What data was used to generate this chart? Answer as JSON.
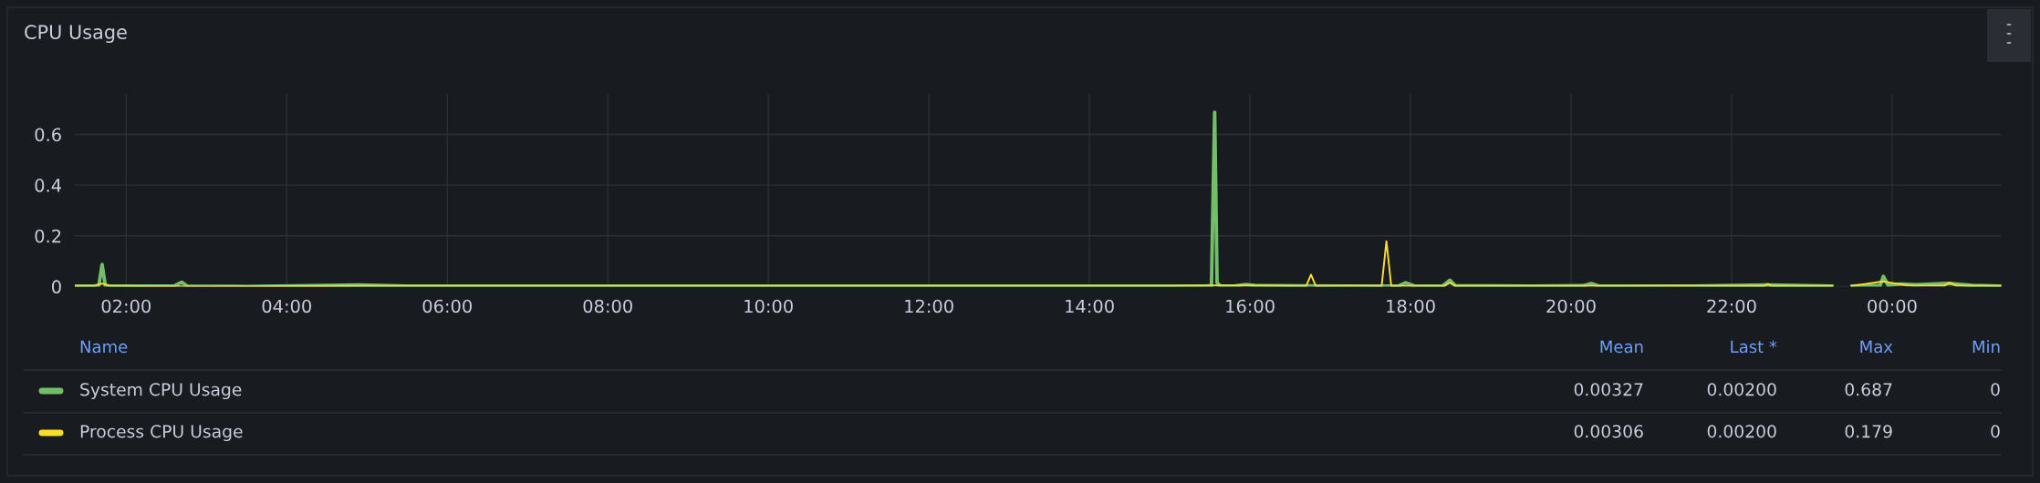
{
  "chart_data": {
    "type": "line",
    "title": "CPU Usage",
    "legend_title": "Name",
    "legend": "bottom",
    "grid": true,
    "marker": "none",
    "line_style": "solid",
    "xlim": [
      1.36,
      25.36
    ],
    "ylim": [
      0,
      0.76
    ],
    "yticks": [
      0,
      0.2,
      0.4,
      0.6
    ],
    "xticks": [
      {
        "value": 2,
        "label": "02:00"
      },
      {
        "value": 4,
        "label": "04:00"
      },
      {
        "value": 6,
        "label": "06:00"
      },
      {
        "value": 8,
        "label": "08:00"
      },
      {
        "value": 10,
        "label": "10:00"
      },
      {
        "value": 12,
        "label": "12:00"
      },
      {
        "value": 14,
        "label": "14:00"
      },
      {
        "value": 16,
        "label": "16:00"
      },
      {
        "value": 18,
        "label": "18:00"
      },
      {
        "value": 20,
        "label": "20:00"
      },
      {
        "value": 22,
        "label": "22:00"
      },
      {
        "value": 24,
        "label": "00:00"
      }
    ],
    "series": [
      {
        "name": "System CPU Usage",
        "color": "#73bf69",
        "x": [
          1.36,
          1.6,
          1.66,
          1.7,
          1.74,
          1.8,
          2.6,
          2.69,
          2.76,
          3.5,
          4.9,
          5.5,
          7.8,
          9.0,
          10.9,
          12.5,
          14.5,
          15.45,
          15.52,
          15.56,
          15.59,
          15.63,
          15.8,
          15.95,
          16.1,
          17.2,
          17.85,
          17.94,
          18.05,
          18.4,
          18.49,
          18.56,
          19.5,
          20.15,
          20.25,
          20.35,
          21.5,
          22.45,
          23.25,
          23.38,
          23.5,
          23.85,
          23.89,
          23.95,
          24.1,
          24.3,
          24.7,
          25.0,
          25.36
        ],
        "values": [
          0.002,
          0.002,
          0.005,
          0.087,
          0.004,
          0.002,
          0.002,
          0.017,
          0.002,
          0,
          0.006,
          0.002,
          0.002,
          0.002,
          0.002,
          0.002,
          0.002,
          0.002,
          0.003,
          0.687,
          0.015,
          0.002,
          0.002,
          0.008,
          0.003,
          0.002,
          0.002,
          0.015,
          0.002,
          0.002,
          0.025,
          0.003,
          0.002,
          0.003,
          0.012,
          0.002,
          0.002,
          0.006,
          0.002,
          null,
          0.002,
          0.004,
          0.04,
          0.005,
          0.01,
          0.007,
          0.012,
          0.004,
          0.002
        ]
      },
      {
        "name": "Process CPU Usage",
        "color": "#fade2a",
        "x": [
          1.36,
          1.6,
          1.7,
          1.8,
          3.0,
          5.0,
          7.0,
          9.0,
          11.0,
          13.0,
          15.0,
          15.56,
          16.0,
          16.7,
          16.76,
          16.82,
          17.2,
          17.64,
          17.7,
          17.76,
          18.0,
          18.42,
          18.49,
          18.56,
          20.0,
          21.3,
          22.4,
          22.45,
          22.5,
          23.25,
          23.38,
          23.5,
          23.89,
          24.2,
          24.65,
          24.72,
          24.8,
          25.36
        ],
        "values": [
          0.002,
          0.002,
          0.012,
          0.002,
          0,
          0.002,
          0.002,
          0.002,
          0.002,
          0.002,
          0.002,
          0.004,
          0.004,
          0.002,
          0.047,
          0.002,
          0.003,
          0.002,
          0.179,
          0.002,
          0.002,
          0.002,
          0.015,
          0.002,
          0.002,
          0.003,
          0.002,
          0.01,
          0.002,
          0.002,
          null,
          0.002,
          0.02,
          0.004,
          0.003,
          0.015,
          0.003,
          0.002
        ]
      }
    ],
    "annotations": [
      "Mean",
      "Last *",
      "Max",
      "Min",
      "0.00327",
      "0.00200",
      "0.687",
      "0",
      "0.00306",
      "0.00200",
      "0.179",
      "0"
    ]
  }
}
